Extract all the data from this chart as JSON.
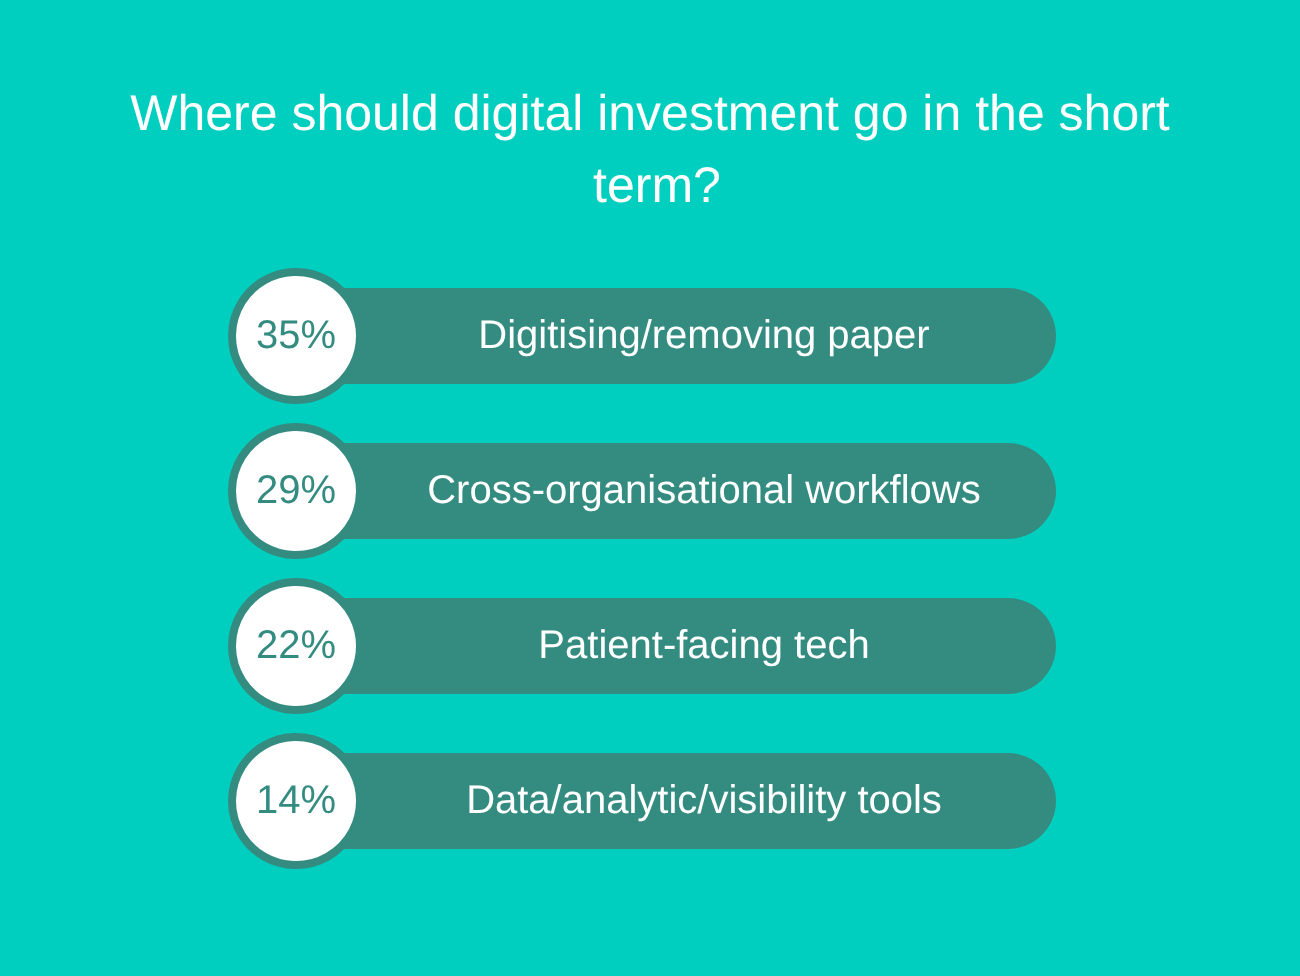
{
  "chart_data": {
    "type": "other",
    "title": "Where should digital investment go in the short term?",
    "categories": [
      "Digitising/removing paper",
      "Cross-organisational workflows",
      "Patient-facing tech",
      "Data/analytic/visibility tools"
    ],
    "values": [
      35,
      29,
      22,
      14
    ],
    "value_labels": [
      "35%",
      "29%",
      "22%",
      "14%"
    ],
    "color": "#348c80"
  }
}
